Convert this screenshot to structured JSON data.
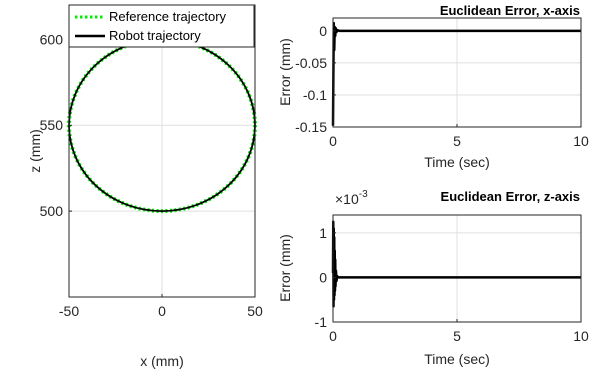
{
  "chart_data": [
    {
      "id": "trajectory",
      "type": "line",
      "title": "",
      "xlabel": "x (mm)",
      "ylabel": "z (mm)",
      "xlim": [
        -50,
        50
      ],
      "ylim": [
        450,
        620
      ],
      "xticks": [
        -50,
        0,
        50
      ],
      "yticks": [
        500,
        550,
        600
      ],
      "grid": true,
      "legend": {
        "placement": "top-left",
        "entries": [
          "Reference trajectory",
          "Robot trajectory"
        ]
      },
      "series": [
        {
          "name": "Reference trajectory",
          "shape": "circle",
          "center": [
            0,
            550
          ],
          "radius": 50,
          "color": "#00ee00",
          "style": "dotted"
        },
        {
          "name": "Robot trajectory",
          "shape": "circle",
          "center": [
            0,
            550
          ],
          "radius": 50,
          "color": "#000000",
          "style": "solid"
        }
      ]
    },
    {
      "id": "error-x",
      "type": "line",
      "title": "Euclidean Error, x-axis",
      "xlabel": "Time (sec)",
      "ylabel": "Error (mm)",
      "xlim": [
        0,
        10
      ],
      "ylim": [
        -0.15,
        0.02
      ],
      "xticks": [
        0,
        5,
        10
      ],
      "yticks": [
        0,
        -0.05,
        -0.1,
        -0.15
      ],
      "ytick_labels": [
        "0",
        "-0.05",
        "-0.1",
        "-0.15"
      ],
      "grid": true,
      "series": [
        {
          "name": "",
          "color": "#000000",
          "x": [
            0,
            0.03,
            0.05,
            0.07,
            0.09,
            0.11,
            0.14,
            0.18,
            0.25,
            0.4,
            1,
            10
          ],
          "y": [
            -0.148,
            0.012,
            -0.03,
            0.006,
            -0.008,
            0.004,
            -0.002,
            0.001,
            0,
            0,
            0,
            0
          ]
        }
      ]
    },
    {
      "id": "error-z",
      "type": "line",
      "title": "Euclidean Error, z-axis",
      "xlabel": "Time (sec)",
      "ylabel": "Error (mm)",
      "xlim": [
        0,
        10
      ],
      "ylim": [
        -1,
        1.4
      ],
      "xticks": [
        0,
        5,
        10
      ],
      "yticks": [
        -1,
        0,
        1
      ],
      "ytick_labels": [
        "-1",
        "0",
        "1"
      ],
      "exponent_base": "×10",
      "exponent_power": "-3",
      "grid": true,
      "series": [
        {
          "name": "",
          "color": "#000000",
          "x": [
            0,
            0.01,
            0.02,
            0.03,
            0.04,
            0.05,
            0.06,
            0.07,
            0.08,
            0.09,
            0.1,
            0.12,
            0.14,
            0.17,
            0.2,
            0.3,
            1,
            10
          ],
          "y": [
            0.1,
            1.25,
            -0.65,
            1.1,
            -0.5,
            0.9,
            -0.4,
            0.6,
            -0.3,
            0.4,
            -0.2,
            0.15,
            -0.08,
            0.03,
            0,
            0,
            0,
            0
          ]
        }
      ]
    }
  ]
}
